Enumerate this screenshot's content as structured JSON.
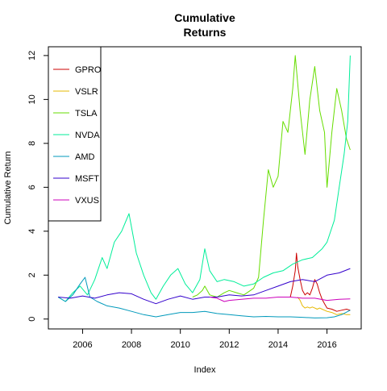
{
  "chart_data": {
    "type": "line",
    "title_lines": [
      "Cumulative",
      "Returns"
    ],
    "xlabel": "Index",
    "ylabel": "Cumulative Return",
    "xlim": [
      2004.6,
      2017.4
    ],
    "ylim": [
      -0.45,
      12.4
    ],
    "x_ticks": [
      2006,
      2008,
      2010,
      2012,
      2014,
      2016
    ],
    "y_ticks": [
      0,
      2,
      4,
      6,
      8,
      10,
      12
    ],
    "grid": false,
    "legend_position": "top-left",
    "series": [
      {
        "name": "GPRO",
        "color": "#cc0000",
        "x": [
          2014.5,
          2014.6,
          2014.7,
          2014.75,
          2014.8,
          2014.9,
          2015.0,
          2015.1,
          2015.2,
          2015.3,
          2015.4,
          2015.5,
          2015.6,
          2015.7,
          2015.8,
          2015.9,
          2016.0,
          2016.2,
          2016.4,
          2016.6,
          2016.8,
          2016.95
        ],
        "y": [
          1.0,
          1.5,
          2.2,
          3.0,
          2.4,
          1.8,
          1.3,
          1.1,
          1.2,
          1.1,
          1.4,
          1.8,
          1.6,
          1.2,
          0.9,
          0.7,
          0.5,
          0.45,
          0.35,
          0.4,
          0.45,
          0.4
        ]
      },
      {
        "name": "VSLR",
        "color": "#e6b800",
        "x": [
          2014.8,
          2014.9,
          2015.0,
          2015.1,
          2015.2,
          2015.3,
          2015.4,
          2015.5,
          2015.6,
          2015.7,
          2015.8,
          2015.9,
          2016.0,
          2016.2,
          2016.4,
          2016.6,
          2016.8,
          2016.95
        ],
        "y": [
          1.0,
          0.85,
          0.6,
          0.5,
          0.55,
          0.5,
          0.55,
          0.5,
          0.45,
          0.5,
          0.45,
          0.4,
          0.35,
          0.3,
          0.2,
          0.25,
          0.2,
          0.2
        ]
      },
      {
        "name": "TSLA",
        "color": "#66dd00",
        "x": [
          2010.5,
          2010.7,
          2010.9,
          2011.0,
          2011.2,
          2011.5,
          2011.8,
          2012.0,
          2012.3,
          2012.6,
          2013.0,
          2013.2,
          2013.4,
          2013.6,
          2013.8,
          2014.0,
          2014.2,
          2014.4,
          2014.6,
          2014.7,
          2014.9,
          2015.1,
          2015.3,
          2015.5,
          2015.7,
          2015.9,
          2016.0,
          2016.2,
          2016.4,
          2016.6,
          2016.8,
          2016.95
        ],
        "y": [
          1.0,
          1.1,
          1.3,
          1.5,
          1.1,
          1.0,
          1.2,
          1.3,
          1.2,
          1.1,
          1.4,
          1.9,
          4.5,
          6.8,
          6.0,
          6.5,
          9.0,
          8.5,
          10.5,
          12.0,
          9.5,
          7.5,
          10.0,
          11.5,
          9.5,
          8.5,
          6.0,
          8.5,
          10.5,
          9.5,
          8.2,
          7.7
        ]
      },
      {
        "name": "NVDA",
        "color": "#00ee99",
        "x": [
          2005.0,
          2005.3,
          2005.6,
          2005.9,
          2006.2,
          2006.5,
          2006.8,
          2007.0,
          2007.3,
          2007.6,
          2007.9,
          2008.2,
          2008.5,
          2008.8,
          2009.0,
          2009.3,
          2009.6,
          2009.9,
          2010.2,
          2010.5,
          2010.8,
          2011.0,
          2011.2,
          2011.5,
          2011.8,
          2012.2,
          2012.6,
          2013.0,
          2013.4,
          2013.8,
          2014.2,
          2014.6,
          2015.0,
          2015.4,
          2015.8,
          2016.0,
          2016.3,
          2016.5,
          2016.7,
          2016.85,
          2016.95
        ],
        "y": [
          1.0,
          0.8,
          1.2,
          1.5,
          1.1,
          1.8,
          2.8,
          2.3,
          3.5,
          4.0,
          4.8,
          3.0,
          2.0,
          1.2,
          0.9,
          1.5,
          2.0,
          2.3,
          1.6,
          1.2,
          1.8,
          3.2,
          2.2,
          1.7,
          1.8,
          1.7,
          1.5,
          1.6,
          1.9,
          2.1,
          2.2,
          2.5,
          2.7,
          2.8,
          3.2,
          3.5,
          4.5,
          6.0,
          7.5,
          9.0,
          12.0
        ]
      },
      {
        "name": "AMD",
        "color": "#0099bb",
        "x": [
          2005.0,
          2005.3,
          2005.6,
          2005.9,
          2006.1,
          2006.3,
          2006.6,
          2007.0,
          2007.5,
          2008.0,
          2008.5,
          2009.0,
          2009.5,
          2010.0,
          2010.5,
          2011.0,
          2011.5,
          2012.0,
          2012.5,
          2013.0,
          2013.5,
          2014.0,
          2014.5,
          2015.0,
          2015.5,
          2016.0,
          2016.3,
          2016.6,
          2016.95
        ],
        "y": [
          1.0,
          0.8,
          1.1,
          1.6,
          1.9,
          1.0,
          0.8,
          0.6,
          0.5,
          0.35,
          0.2,
          0.1,
          0.2,
          0.3,
          0.3,
          0.35,
          0.25,
          0.2,
          0.15,
          0.1,
          0.12,
          0.1,
          0.1,
          0.08,
          0.05,
          0.06,
          0.1,
          0.2,
          0.4
        ]
      },
      {
        "name": "MSFT",
        "color": "#3300cc",
        "x": [
          2005.0,
          2005.5,
          2006.0,
          2006.5,
          2007.0,
          2007.5,
          2008.0,
          2008.5,
          2009.0,
          2009.5,
          2010.0,
          2010.5,
          2011.0,
          2011.5,
          2012.0,
          2012.5,
          2013.0,
          2013.5,
          2014.0,
          2014.5,
          2015.0,
          2015.5,
          2016.0,
          2016.5,
          2016.95
        ],
        "y": [
          1.0,
          0.95,
          1.05,
          0.95,
          1.1,
          1.2,
          1.15,
          0.9,
          0.7,
          0.9,
          1.05,
          0.9,
          1.0,
          1.0,
          1.1,
          1.05,
          1.1,
          1.3,
          1.5,
          1.7,
          1.8,
          1.7,
          2.0,
          2.1,
          2.3
        ]
      },
      {
        "name": "VXUS",
        "color": "#cc00bb",
        "x": [
          2011.2,
          2011.5,
          2011.8,
          2012.0,
          2012.5,
          2013.0,
          2013.5,
          2014.0,
          2014.5,
          2015.0,
          2015.5,
          2016.0,
          2016.5,
          2016.95
        ],
        "y": [
          1.0,
          0.95,
          0.8,
          0.85,
          0.9,
          0.95,
          0.95,
          1.0,
          1.0,
          0.95,
          0.95,
          0.85,
          0.9,
          0.92
        ]
      }
    ]
  }
}
